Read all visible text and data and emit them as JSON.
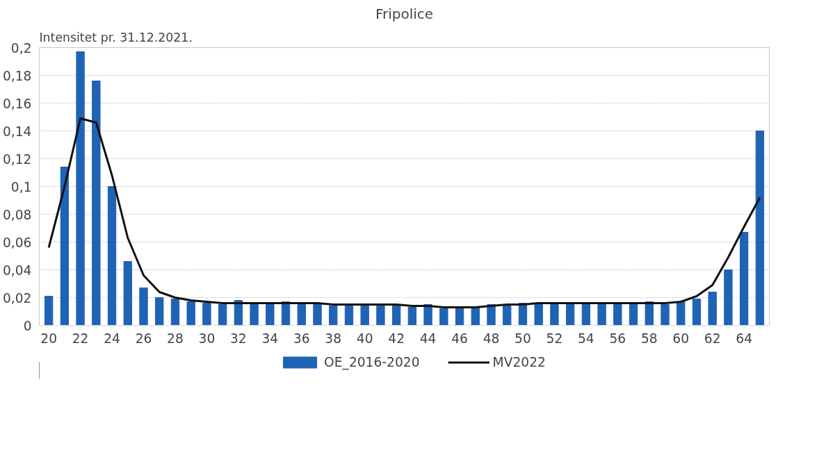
{
  "chart_data": {
    "type": "bar",
    "title": "Fripolice",
    "annotations": [
      "Intensitet pr. 31.12.2021."
    ],
    "categories": [
      "20",
      null,
      "22",
      null,
      "24",
      null,
      "26",
      null,
      "28",
      null,
      "30",
      null,
      "32",
      null,
      "34",
      null,
      "36",
      null,
      "38",
      null,
      "40",
      null,
      "42",
      null,
      "44",
      null,
      "46",
      null,
      "48",
      null,
      "50",
      null,
      "52",
      null,
      "54",
      null,
      "56",
      null,
      "58",
      null,
      "60",
      null,
      "62",
      null,
      "64",
      null
    ],
    "series": [
      {
        "name": "OE_2016-2020",
        "color": "#1f63b5",
        "values": [
          0.021,
          0.114,
          0.197,
          0.176,
          0.1,
          0.046,
          0.027,
          0.02,
          0.019,
          0.017,
          0.016,
          0.015,
          0.018,
          0.015,
          0.015,
          0.017,
          0.015,
          0.015,
          0.014,
          0.014,
          0.014,
          0.014,
          0.015,
          0.013,
          0.015,
          0.012,
          0.013,
          0.013,
          0.015,
          0.014,
          0.016,
          0.015,
          0.015,
          0.016,
          0.015,
          0.015,
          0.015,
          0.015,
          0.017,
          0.015,
          0.017,
          0.019,
          0.024,
          0.04,
          0.067,
          0.14
        ]
      },
      {
        "name": "MV2022",
        "type": "line",
        "color": "#111111",
        "values": [
          0.056,
          0.1,
          0.149,
          0.146,
          0.108,
          0.063,
          0.036,
          0.024,
          0.02,
          0.018,
          0.017,
          0.016,
          0.016,
          0.016,
          0.016,
          0.016,
          0.016,
          0.016,
          0.015,
          0.015,
          0.015,
          0.015,
          0.015,
          0.014,
          0.014,
          0.013,
          0.013,
          0.013,
          0.014,
          0.015,
          0.015,
          0.016,
          0.016,
          0.016,
          0.016,
          0.016,
          0.016,
          0.016,
          0.016,
          0.016,
          0.017,
          0.021,
          0.029,
          0.049,
          0.071,
          0.092
        ]
      }
    ],
    "ylim": [
      0,
      0.2
    ],
    "yticks": [
      {
        "value": 0,
        "label": "0"
      },
      {
        "value": 0.02,
        "label": "0,02"
      },
      {
        "value": 0.04,
        "label": "0,04"
      },
      {
        "value": 0.06,
        "label": "0,06"
      },
      {
        "value": 0.08,
        "label": "0,08"
      },
      {
        "value": 0.1,
        "label": "0,1"
      },
      {
        "value": 0.12,
        "label": "0,12"
      },
      {
        "value": 0.14,
        "label": "0,14"
      },
      {
        "value": 0.16,
        "label": "0,16"
      },
      {
        "value": 0.18,
        "label": "0,18"
      },
      {
        "value": 0.2,
        "label": "0,2"
      }
    ],
    "grid": "y",
    "legend": "bottom"
  }
}
